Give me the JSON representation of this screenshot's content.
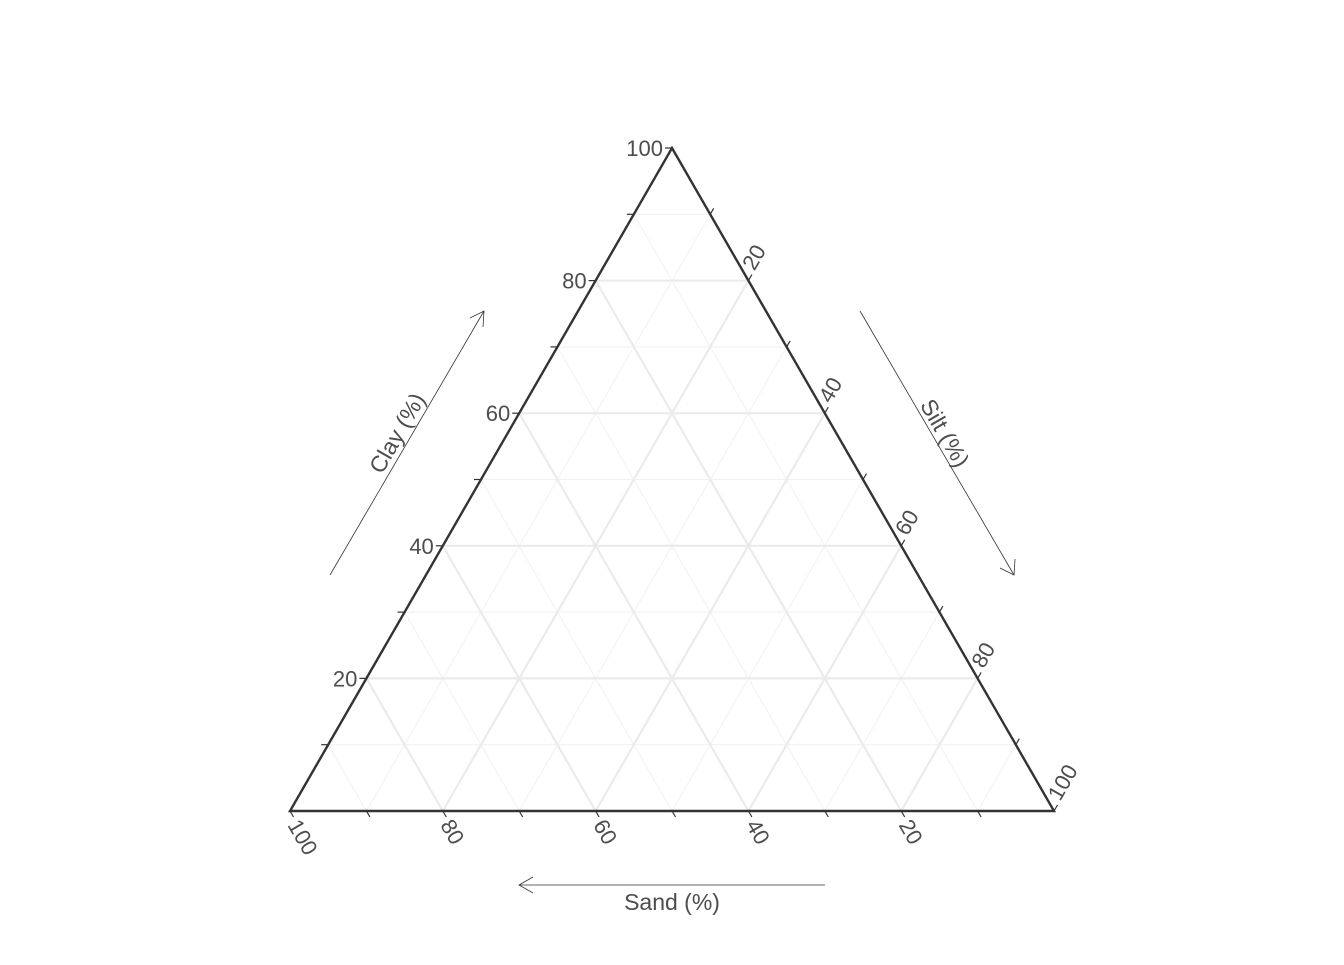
{
  "chart_data": {
    "type": "ternary",
    "title": "",
    "axes": {
      "clay": {
        "label": "Clay (%)",
        "min": 0,
        "max": 100,
        "ticks": [
          20,
          40,
          60,
          80,
          100
        ],
        "tick_labels": [
          "20",
          "40",
          "60",
          "80",
          "100"
        ]
      },
      "silt": {
        "label": "Silt (%)",
        "min": 0,
        "max": 100,
        "ticks": [
          20,
          40,
          60,
          80,
          100
        ],
        "tick_labels": [
          "20",
          "40",
          "60",
          "80",
          "100"
        ]
      },
      "sand": {
        "label": "Sand (%)",
        "min": 0,
        "max": 100,
        "ticks": [
          100,
          80,
          60,
          40,
          20
        ],
        "tick_labels": [
          "100",
          "80",
          "60",
          "40",
          "20"
        ]
      }
    },
    "major_grid_step": 20,
    "minor_grid_step": 10,
    "grid": true,
    "points": [],
    "colors": {
      "frame": "#333333",
      "major_grid": "#ebebeb",
      "minor_grid": "#f2f2f2",
      "text": "#4d4d4d",
      "arrow": "#333333"
    }
  }
}
